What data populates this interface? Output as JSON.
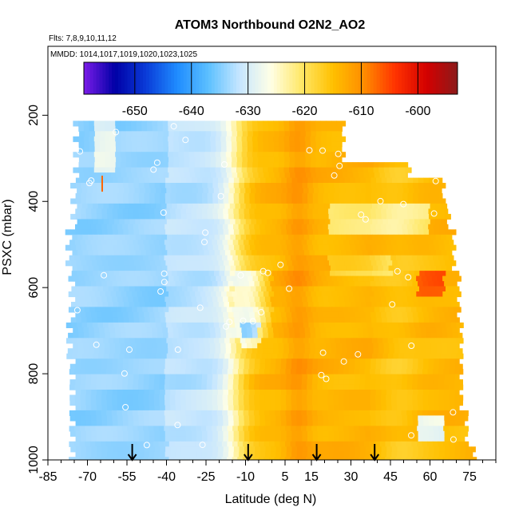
{
  "chart_data": {
    "type": "heatmap",
    "title": "ATOM3 Northbound O2N2_AO2",
    "subtitle_flights": "Flts: 7,8,9,10,11,12",
    "subtitle_dates": "MMDD: 1014,1017,1019,1020,1023,1025",
    "xlabel": "Latitude (deg N)",
    "ylabel": "PSXC (mbar)",
    "xlim": [
      -85,
      85
    ],
    "ylim": [
      1000,
      40
    ],
    "x_ticks": [
      -85,
      -70,
      -55,
      -40,
      -25,
      -10,
      5,
      15,
      30,
      45,
      60,
      75
    ],
    "y_ticks": [
      200,
      400,
      600,
      800,
      1000
    ],
    "colorbar": {
      "range": [
        -659,
        -593
      ],
      "ticks": [
        -650,
        -640,
        -630,
        -620,
        -610,
        -600
      ],
      "colors": [
        "#7b1ce8",
        "#0000a6",
        "#0a3cd8",
        "#1f8cff",
        "#5cc0ff",
        "#c6e6ff",
        "#ffffe6",
        "#ffe766",
        "#ffc000",
        "#ff8c00",
        "#ff3300",
        "#d40000",
        "#8b1a1a"
      ]
    },
    "flight_arrows_lat": [
      -53,
      -9,
      17,
      39
    ],
    "grid": false,
    "legend_position": "top (colorbar)"
  }
}
